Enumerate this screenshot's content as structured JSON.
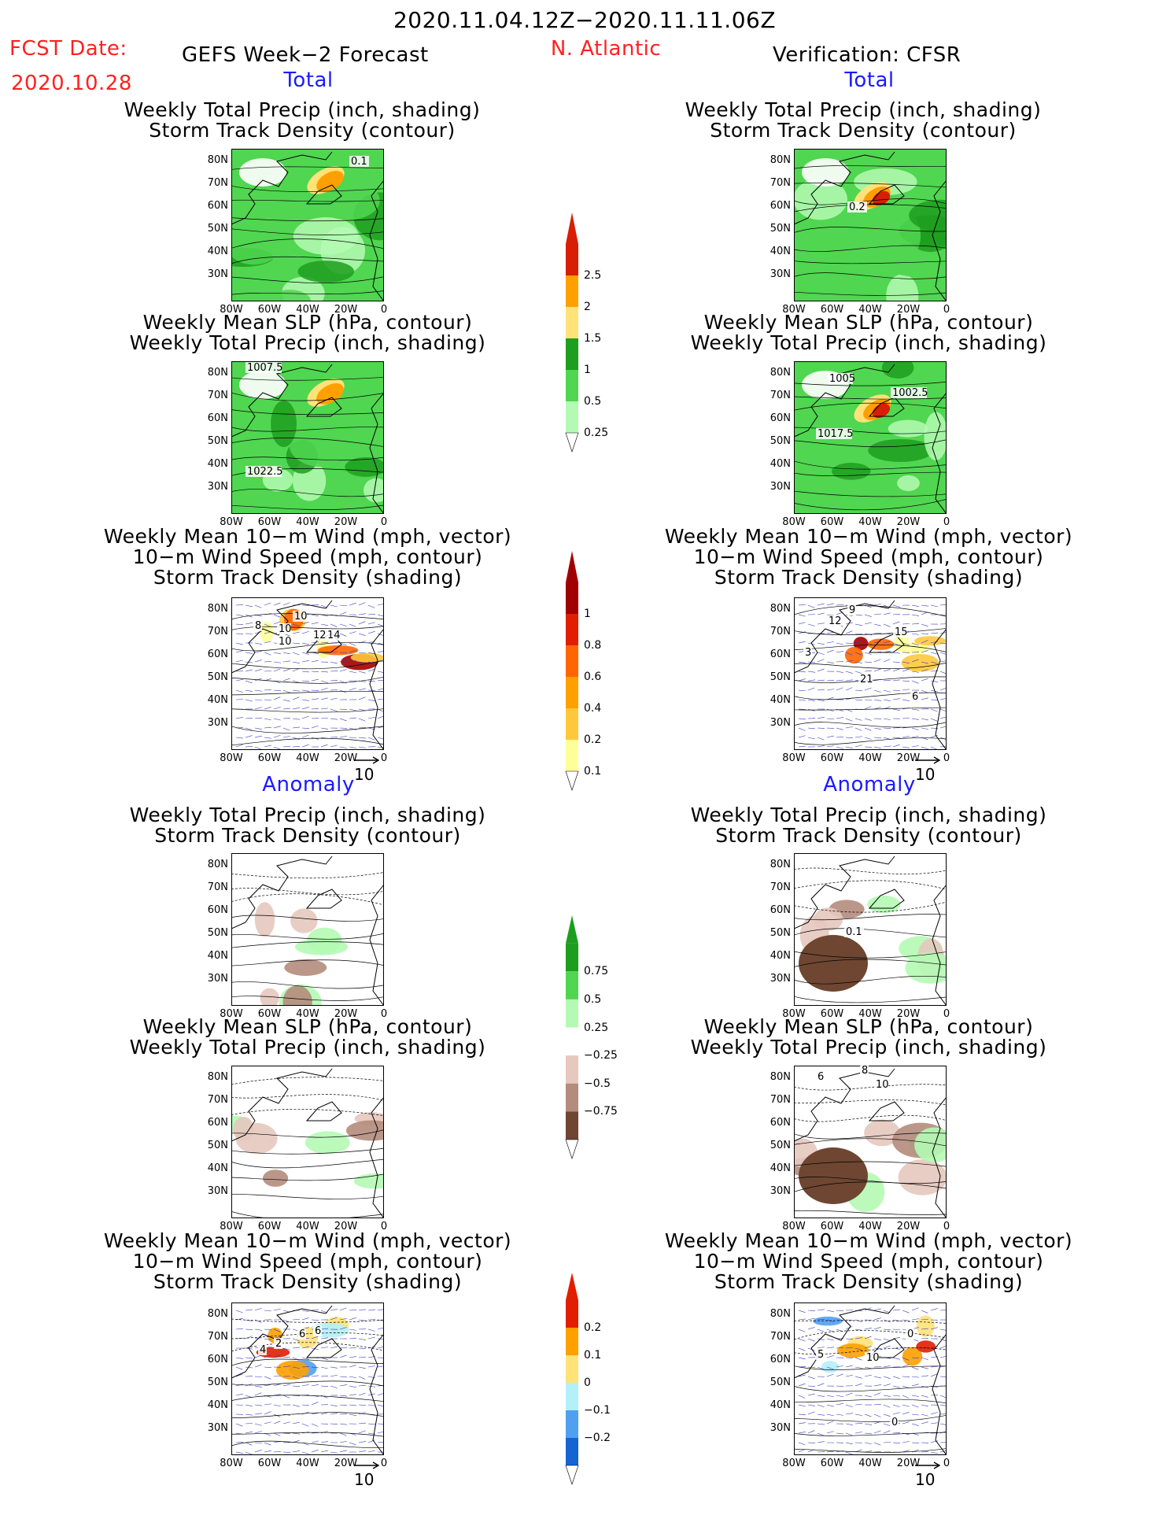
{
  "header": {
    "title": "2020.11.04.12Z−2020.11.11.06Z",
    "fcst_label": "FCST Date:",
    "fcst_date": "2020.10.28",
    "left_title": "GEFS Week−2 Forecast",
    "region": "N. Atlantic",
    "right_title": "Verification: CFSR"
  },
  "sections": {
    "total_label": "Total",
    "anomaly_label": "Anomaly"
  },
  "panel_titles": {
    "precip_track": [
      "Weekly Total Precip (inch, shading)",
      "Storm Track Density (contour)"
    ],
    "slp_precip": [
      "Weekly Mean SLP (hPa, contour)",
      "Weekly Total Precip (inch, shading)"
    ],
    "wind_track": [
      "Weekly Mean 10−m Wind (mph, vector)",
      "10−m Wind Speed (mph, contour)",
      "Storm Track Density (shading)"
    ]
  },
  "axes": {
    "lat_labels": [
      "80N",
      "70N",
      "60N",
      "50N",
      "40N",
      "30N"
    ],
    "lon_labels": [
      "80W",
      "60W",
      "40W",
      "20W",
      "0"
    ]
  },
  "vector_reference": "10",
  "contour_labels": {
    "l1": [
      "0.1"
    ],
    "r1": [
      "0.2"
    ],
    "l2": [
      "1007.5",
      "1022.5"
    ],
    "r2": [
      "1005",
      "1002.5",
      "1017.5"
    ],
    "l3": [
      "8",
      "10",
      "10",
      "12",
      "14",
      "10"
    ],
    "r3": [
      "9",
      "12",
      "15",
      "21",
      "6",
      "3"
    ],
    "l4": [],
    "r4": [
      "0.1"
    ],
    "l5": [],
    "r5": [
      "6",
      "8",
      "10"
    ],
    "l6": [
      "2",
      "6",
      "6",
      "4"
    ],
    "r6": [
      "5",
      "10",
      "0",
      "0"
    ]
  },
  "colorbars": {
    "precip_total": {
      "labels": [
        "2.5",
        "2",
        "1.5",
        "1",
        "0.5",
        "0.25"
      ],
      "colors": [
        "#d81e05",
        "#ffa000",
        "#ffe278",
        "#1e9e1e",
        "#50d650",
        "#b4fab4"
      ]
    },
    "track_total": {
      "labels": [
        "1",
        "0.8",
        "0.6",
        "0.4",
        "0.2",
        "0.1"
      ],
      "colors": [
        "#a00000",
        "#e11e00",
        "#ff6600",
        "#ffa000",
        "#ffc83c",
        "#ffff99"
      ]
    },
    "precip_anom": {
      "labels": [
        "0.75",
        "0.5",
        "0.25",
        "−0.25",
        "−0.5",
        "−0.75"
      ],
      "colors": [
        "#1e9e1e",
        "#50d650",
        "#b4fab4",
        "#ffffff",
        "#e6c8be",
        "#b48c7d",
        "#6e4632"
      ]
    },
    "track_anom": {
      "labels": [
        "0.2",
        "0.1",
        "0",
        "−0.1",
        "−0.2"
      ],
      "colors": [
        "#e11e00",
        "#ffa000",
        "#ffe278",
        "#b4f0fa",
        "#50a0f0",
        "#1464d2"
      ]
    }
  }
}
